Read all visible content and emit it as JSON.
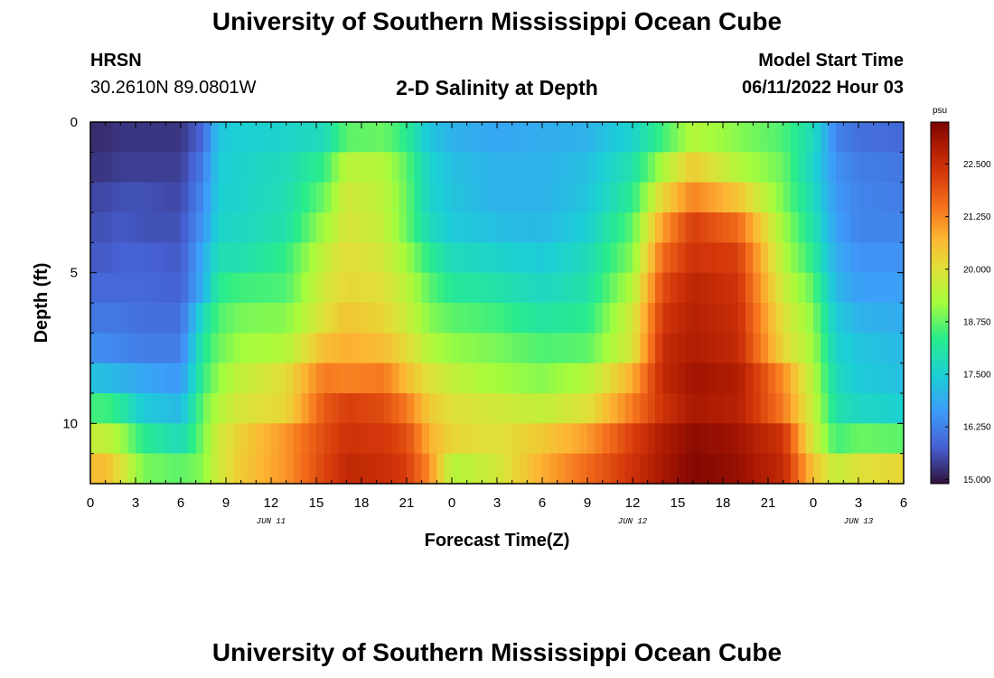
{
  "header": {
    "title": "University of Southern Mississippi Ocean Cube",
    "station": "HRSN",
    "coords": "30.2610N  89.0801W",
    "subtitle": "2-D Salinity at Depth",
    "model_start_label": "Model Start Time",
    "model_start_value": "06/11/2022 Hour 03"
  },
  "footer": {
    "title": "University of Southern Mississippi Ocean Cube"
  },
  "chart_data": {
    "type": "heatmap",
    "title": "2-D Salinity at Depth",
    "xlabel": "Forecast Time(Z)",
    "ylabel": "Depth (ft)",
    "x_hours_range": [
      0,
      54
    ],
    "x_ticks": [
      "0",
      "3",
      "6",
      "9",
      "12",
      "15",
      "18",
      "21",
      "0",
      "3",
      "6",
      "9",
      "12",
      "15",
      "18",
      "21",
      "0",
      "3",
      "6"
    ],
    "date_labels": [
      {
        "label": "JUN 11",
        "hour": 12
      },
      {
        "label": "JUN 12",
        "hour": 36
      },
      {
        "label": "JUN 13",
        "hour": 51
      }
    ],
    "y_range": [
      0,
      12
    ],
    "y_ticks": [
      "0",
      "5",
      "10"
    ],
    "colorbar": {
      "unit": "psu",
      "min": 14.9,
      "max": 23.5,
      "ticks": [
        "22.500",
        "21.250",
        "20.000",
        "18.750",
        "17.500",
        "16.250",
        "15.000"
      ],
      "tick_values": [
        22.5,
        21.25,
        20.0,
        18.75,
        17.5,
        16.25,
        15.0
      ]
    },
    "layer_depths_ft": [
      0.5,
      1.5,
      2.5,
      3.5,
      4.5,
      5.5,
      6.5,
      7.5,
      8.5,
      9.5,
      10.5,
      11.5
    ],
    "keyframes_hours": [
      0,
      1,
      2,
      3.5,
      6,
      7.5,
      8.5,
      10,
      13,
      15.5,
      17,
      19.5,
      21,
      22.5,
      24,
      27,
      30,
      33,
      36,
      38,
      40,
      43,
      46,
      48,
      49.5,
      51,
      54
    ],
    "salinity_keyframes": [
      [
        15.2,
        15.2,
        15.3,
        15.3,
        15.3,
        15.9,
        17.3,
        17.5,
        17.6,
        17.8,
        18.7,
        18.8,
        18.3,
        17.3,
        17.0,
        16.8,
        16.9,
        17.0,
        17.6,
        18.5,
        19.4,
        19.0,
        18.6,
        17.8,
        16.3,
        16.0,
        15.9
      ],
      [
        15.3,
        15.3,
        15.4,
        15.4,
        15.4,
        16.2,
        17.4,
        17.6,
        17.8,
        18.4,
        19.5,
        19.4,
        18.7,
        17.6,
        17.2,
        17.0,
        17.0,
        17.2,
        18.0,
        19.3,
        20.4,
        19.4,
        18.8,
        17.6,
        16.5,
        16.2,
        16.1
      ],
      [
        15.5,
        15.5,
        15.6,
        15.6,
        15.5,
        16.4,
        17.5,
        17.6,
        17.9,
        18.8,
        19.8,
        19.5,
        18.8,
        17.6,
        17.3,
        17.0,
        17.0,
        17.3,
        18.3,
        20.2,
        21.3,
        20.5,
        18.9,
        17.8,
        16.6,
        16.3,
        16.2
      ],
      [
        15.6,
        15.6,
        15.7,
        15.6,
        15.6,
        16.6,
        17.6,
        17.7,
        18.0,
        19.2,
        19.9,
        19.6,
        18.8,
        17.8,
        17.4,
        17.2,
        17.1,
        17.5,
        18.7,
        21.0,
        22.2,
        21.6,
        19.2,
        18.0,
        16.7,
        16.3,
        16.3
      ],
      [
        15.7,
        15.7,
        15.8,
        15.8,
        15.7,
        16.9,
        17.9,
        17.9,
        18.4,
        19.6,
        20.1,
        19.8,
        19.2,
        18.3,
        17.8,
        17.6,
        17.4,
        17.8,
        19.0,
        21.6,
        22.4,
        22.2,
        19.4,
        18.3,
        16.9,
        16.5,
        16.5
      ],
      [
        15.9,
        15.9,
        15.9,
        15.9,
        15.8,
        17.0,
        18.3,
        18.5,
        18.6,
        19.8,
        20.2,
        20.0,
        19.5,
        18.7,
        18.2,
        18.0,
        17.7,
        18.0,
        19.4,
        22.0,
        22.7,
        22.4,
        19.7,
        18.7,
        17.1,
        16.7,
        16.7
      ],
      [
        16.1,
        16.1,
        16.1,
        16.0,
        16.0,
        17.8,
        18.6,
        18.9,
        19.0,
        20.0,
        20.5,
        20.2,
        19.7,
        19.0,
        18.7,
        18.5,
        18.1,
        18.3,
        19.8,
        22.3,
        22.8,
        22.5,
        20.0,
        19.0,
        17.4,
        17.0,
        16.9
      ],
      [
        16.4,
        16.4,
        16.3,
        16.2,
        16.2,
        18.2,
        18.8,
        19.2,
        19.4,
        20.6,
        20.8,
        20.6,
        20.1,
        19.4,
        19.1,
        18.9,
        18.6,
        18.7,
        19.9,
        22.5,
        22.9,
        22.6,
        20.2,
        19.2,
        17.6,
        17.3,
        17.1
      ],
      [
        17.2,
        17.2,
        17.0,
        16.8,
        16.6,
        18.4,
        19.1,
        19.6,
        20.1,
        21.4,
        21.3,
        21.4,
        20.6,
        20.0,
        19.6,
        19.2,
        19.0,
        19.4,
        20.8,
        22.6,
        23.1,
        22.9,
        21.2,
        19.4,
        17.8,
        17.4,
        17.2
      ],
      [
        18.5,
        18.5,
        18.2,
        17.4,
        17.1,
        18.8,
        19.4,
        19.9,
        20.2,
        21.8,
        22.2,
        22.0,
        21.4,
        20.4,
        20.0,
        19.8,
        19.6,
        20.0,
        21.4,
        22.4,
        23.0,
        22.8,
        21.4,
        19.6,
        18.0,
        17.7,
        17.5
      ],
      [
        19.6,
        19.6,
        19.2,
        18.3,
        17.8,
        18.9,
        19.8,
        20.3,
        21.1,
        22.0,
        22.4,
        22.3,
        22.0,
        20.8,
        20.2,
        20.0,
        20.4,
        21.0,
        22.2,
        22.9,
        23.3,
        23.1,
        22.4,
        19.8,
        18.5,
        18.8,
        18.7
      ],
      [
        20.6,
        20.6,
        20.0,
        18.9,
        18.7,
        19.0,
        19.8,
        20.4,
        21.1,
        22.1,
        22.6,
        22.5,
        22.2,
        21.2,
        19.4,
        19.8,
        20.8,
        21.6,
        22.4,
        23.0,
        23.4,
        23.2,
        22.6,
        20.5,
        19.6,
        20.0,
        20.2
      ]
    ]
  }
}
